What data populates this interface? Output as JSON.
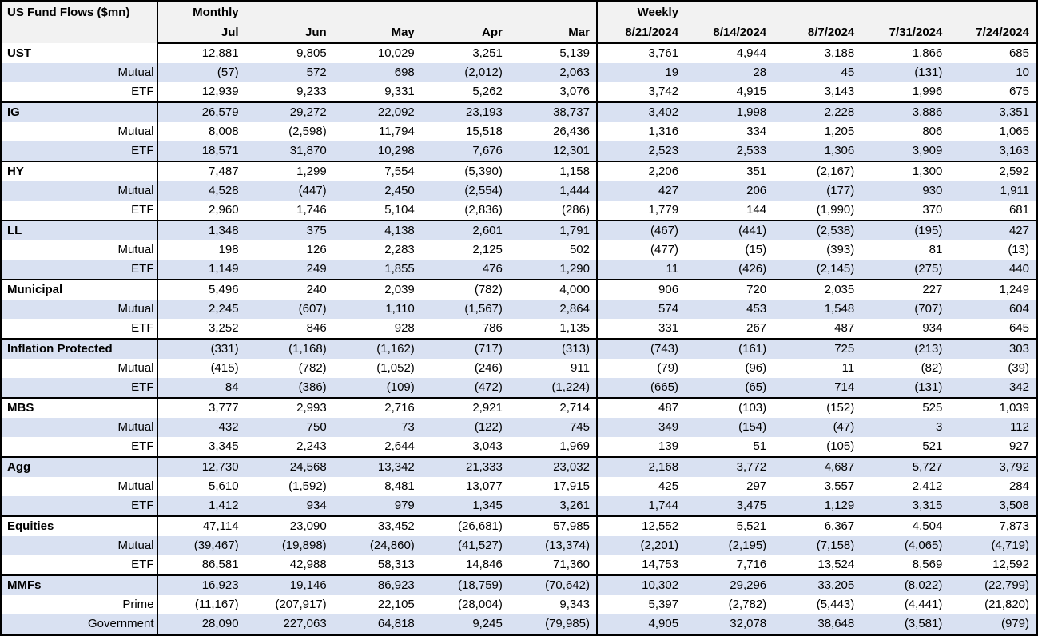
{
  "colors": {
    "stripe": "#d9e1f2",
    "header_bg": "#f2f2f2",
    "border": "#000000",
    "text": "#000000",
    "background": "#ffffff"
  },
  "chart_data": {
    "type": "table",
    "title": "US Fund Flows ($mn)",
    "units": "$mn",
    "column_groups": [
      {
        "label": "Monthly",
        "columns": [
          "Jul",
          "Jun",
          "May",
          "Apr",
          "Mar"
        ]
      },
      {
        "label": "Weekly",
        "columns": [
          "8/21/2024",
          "8/14/2024",
          "8/7/2024",
          "7/31/2024",
          "7/24/2024"
        ]
      }
    ],
    "row_groups": [
      {
        "rows": [
          {
            "label": "UST",
            "bold": true,
            "monthly": [
              "12,881",
              "9,805",
              "10,029",
              "3,251",
              "5,139"
            ],
            "weekly": [
              "3,761",
              "4,944",
              "3,188",
              "1,866",
              "685"
            ]
          },
          {
            "label": "Mutual",
            "bold": false,
            "monthly": [
              "(57)",
              "572",
              "698",
              "(2,012)",
              "2,063"
            ],
            "weekly": [
              "19",
              "28",
              "45",
              "(131)",
              "10"
            ]
          },
          {
            "label": "ETF",
            "bold": false,
            "monthly": [
              "12,939",
              "9,233",
              "9,331",
              "5,262",
              "3,076"
            ],
            "weekly": [
              "3,742",
              "4,915",
              "3,143",
              "1,996",
              "675"
            ]
          }
        ]
      },
      {
        "rows": [
          {
            "label": "IG",
            "bold": true,
            "monthly": [
              "26,579",
              "29,272",
              "22,092",
              "23,193",
              "38,737"
            ],
            "weekly": [
              "3,402",
              "1,998",
              "2,228",
              "3,886",
              "3,351"
            ]
          },
          {
            "label": "Mutual",
            "bold": false,
            "monthly": [
              "8,008",
              "(2,598)",
              "11,794",
              "15,518",
              "26,436"
            ],
            "weekly": [
              "1,316",
              "334",
              "1,205",
              "806",
              "1,065"
            ]
          },
          {
            "label": "ETF",
            "bold": false,
            "monthly": [
              "18,571",
              "31,870",
              "10,298",
              "7,676",
              "12,301"
            ],
            "weekly": [
              "2,523",
              "2,533",
              "1,306",
              "3,909",
              "3,163"
            ]
          }
        ]
      },
      {
        "rows": [
          {
            "label": "HY",
            "bold": true,
            "monthly": [
              "7,487",
              "1,299",
              "7,554",
              "(5,390)",
              "1,158"
            ],
            "weekly": [
              "2,206",
              "351",
              "(2,167)",
              "1,300",
              "2,592"
            ]
          },
          {
            "label": "Mutual",
            "bold": false,
            "monthly": [
              "4,528",
              "(447)",
              "2,450",
              "(2,554)",
              "1,444"
            ],
            "weekly": [
              "427",
              "206",
              "(177)",
              "930",
              "1,911"
            ]
          },
          {
            "label": "ETF",
            "bold": false,
            "monthly": [
              "2,960",
              "1,746",
              "5,104",
              "(2,836)",
              "(286)"
            ],
            "weekly": [
              "1,779",
              "144",
              "(1,990)",
              "370",
              "681"
            ]
          }
        ]
      },
      {
        "rows": [
          {
            "label": "LL",
            "bold": true,
            "monthly": [
              "1,348",
              "375",
              "4,138",
              "2,601",
              "1,791"
            ],
            "weekly": [
              "(467)",
              "(441)",
              "(2,538)",
              "(195)",
              "427"
            ]
          },
          {
            "label": "Mutual",
            "bold": false,
            "monthly": [
              "198",
              "126",
              "2,283",
              "2,125",
              "502"
            ],
            "weekly": [
              "(477)",
              "(15)",
              "(393)",
              "81",
              "(13)"
            ]
          },
          {
            "label": "ETF",
            "bold": false,
            "monthly": [
              "1,149",
              "249",
              "1,855",
              "476",
              "1,290"
            ],
            "weekly": [
              "11",
              "(426)",
              "(2,145)",
              "(275)",
              "440"
            ]
          }
        ]
      },
      {
        "rows": [
          {
            "label": "Municipal",
            "bold": true,
            "monthly": [
              "5,496",
              "240",
              "2,039",
              "(782)",
              "4,000"
            ],
            "weekly": [
              "906",
              "720",
              "2,035",
              "227",
              "1,249"
            ]
          },
          {
            "label": "Mutual",
            "bold": false,
            "monthly": [
              "2,245",
              "(607)",
              "1,110",
              "(1,567)",
              "2,864"
            ],
            "weekly": [
              "574",
              "453",
              "1,548",
              "(707)",
              "604"
            ]
          },
          {
            "label": "ETF",
            "bold": false,
            "monthly": [
              "3,252",
              "846",
              "928",
              "786",
              "1,135"
            ],
            "weekly": [
              "331",
              "267",
              "487",
              "934",
              "645"
            ]
          }
        ]
      },
      {
        "rows": [
          {
            "label": "Inflation Protected",
            "bold": true,
            "monthly": [
              "(331)",
              "(1,168)",
              "(1,162)",
              "(717)",
              "(313)"
            ],
            "weekly": [
              "(743)",
              "(161)",
              "725",
              "(213)",
              "303"
            ]
          },
          {
            "label": "Mutual",
            "bold": false,
            "monthly": [
              "(415)",
              "(782)",
              "(1,052)",
              "(246)",
              "911"
            ],
            "weekly": [
              "(79)",
              "(96)",
              "11",
              "(82)",
              "(39)"
            ]
          },
          {
            "label": "ETF",
            "bold": false,
            "monthly": [
              "84",
              "(386)",
              "(109)",
              "(472)",
              "(1,224)"
            ],
            "weekly": [
              "(665)",
              "(65)",
              "714",
              "(131)",
              "342"
            ]
          }
        ]
      },
      {
        "rows": [
          {
            "label": "MBS",
            "bold": true,
            "monthly": [
              "3,777",
              "2,993",
              "2,716",
              "2,921",
              "2,714"
            ],
            "weekly": [
              "487",
              "(103)",
              "(152)",
              "525",
              "1,039"
            ]
          },
          {
            "label": "Mutual",
            "bold": false,
            "monthly": [
              "432",
              "750",
              "73",
              "(122)",
              "745"
            ],
            "weekly": [
              "349",
              "(154)",
              "(47)",
              "3",
              "112"
            ]
          },
          {
            "label": "ETF",
            "bold": false,
            "monthly": [
              "3,345",
              "2,243",
              "2,644",
              "3,043",
              "1,969"
            ],
            "weekly": [
              "139",
              "51",
              "(105)",
              "521",
              "927"
            ]
          }
        ]
      },
      {
        "rows": [
          {
            "label": "Agg",
            "bold": true,
            "monthly": [
              "12,730",
              "24,568",
              "13,342",
              "21,333",
              "23,032"
            ],
            "weekly": [
              "2,168",
              "3,772",
              "4,687",
              "5,727",
              "3,792"
            ]
          },
          {
            "label": "Mutual",
            "bold": false,
            "monthly": [
              "5,610",
              "(1,592)",
              "8,481",
              "13,077",
              "17,915"
            ],
            "weekly": [
              "425",
              "297",
              "3,557",
              "2,412",
              "284"
            ]
          },
          {
            "label": "ETF",
            "bold": false,
            "monthly": [
              "1,412",
              "934",
              "979",
              "1,345",
              "3,261"
            ],
            "weekly": [
              "1,744",
              "3,475",
              "1,129",
              "3,315",
              "3,508"
            ]
          }
        ]
      },
      {
        "rows": [
          {
            "label": "Equities",
            "bold": true,
            "monthly": [
              "47,114",
              "23,090",
              "33,452",
              "(26,681)",
              "57,985"
            ],
            "weekly": [
              "12,552",
              "5,521",
              "6,367",
              "4,504",
              "7,873"
            ]
          },
          {
            "label": "Mutual",
            "bold": false,
            "monthly": [
              "(39,467)",
              "(19,898)",
              "(24,860)",
              "(41,527)",
              "(13,374)"
            ],
            "weekly": [
              "(2,201)",
              "(2,195)",
              "(7,158)",
              "(4,065)",
              "(4,719)"
            ]
          },
          {
            "label": "ETF",
            "bold": false,
            "monthly": [
              "86,581",
              "42,988",
              "58,313",
              "14,846",
              "71,360"
            ],
            "weekly": [
              "14,753",
              "7,716",
              "13,524",
              "8,569",
              "12,592"
            ]
          }
        ]
      },
      {
        "rows": [
          {
            "label": "MMFs",
            "bold": true,
            "monthly": [
              "16,923",
              "19,146",
              "86,923",
              "(18,759)",
              "(70,642)"
            ],
            "weekly": [
              "10,302",
              "29,296",
              "33,205",
              "(8,022)",
              "(22,799)"
            ]
          },
          {
            "label": "Prime",
            "bold": false,
            "monthly": [
              "(11,167)",
              "(207,917)",
              "22,105",
              "(28,004)",
              "9,343"
            ],
            "weekly": [
              "5,397",
              "(2,782)",
              "(5,443)",
              "(4,441)",
              "(21,820)"
            ]
          },
          {
            "label": "Government",
            "bold": false,
            "monthly": [
              "28,090",
              "227,063",
              "64,818",
              "9,245",
              "(79,985)"
            ],
            "weekly": [
              "4,905",
              "32,078",
              "38,648",
              "(3,581)",
              "(979)"
            ]
          }
        ]
      }
    ]
  }
}
